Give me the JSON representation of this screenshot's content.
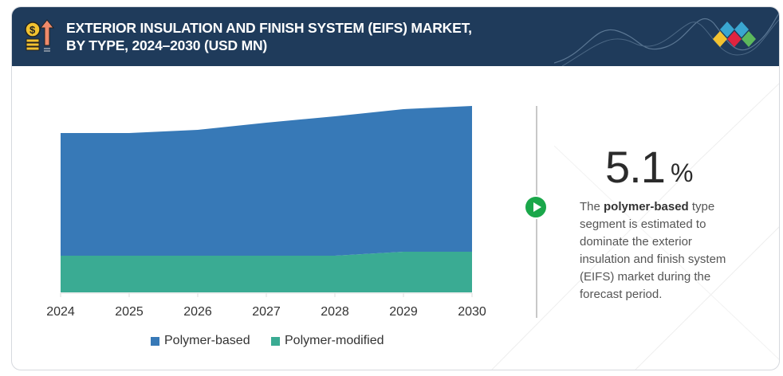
{
  "header": {
    "title_line1": "EXTERIOR INSULATION AND FINISH SYSTEM (EIFS)  MARKET,",
    "title_line2": "BY TYPE, 2024–2030 (USD MN)"
  },
  "highlight": {
    "value": "5.1",
    "unit": "%",
    "text_pre": "The ",
    "text_bold": "polymer-based",
    "text_post": " type segment is estimated to dominate the exterior insulation and finish system (EIFS) market during the forecast period."
  },
  "colors": {
    "header": "#1f3b5b",
    "polymer_based": "#3779b7",
    "polymer_modified": "#3aab93",
    "accent": "#1aa74a"
  },
  "chart_data": {
    "type": "area",
    "stacked": true,
    "title": "EXTERIOR INSULATION AND FINISH SYSTEM (EIFS) MARKET, BY TYPE, 2024–2030 (USD MN)",
    "xlabel": "",
    "ylabel": "",
    "categories": [
      "2024",
      "2025",
      "2026",
      "2027",
      "2028",
      "2029",
      "2030"
    ],
    "series": [
      {
        "name": "Polymer-modified",
        "color": "#3aab93",
        "values": [
          46,
          46,
          46,
          46,
          46,
          51,
          51
        ]
      },
      {
        "name": "Polymer-based",
        "color": "#3779b7",
        "values": [
          154,
          154,
          158,
          167,
          175,
          179,
          183
        ]
      }
    ],
    "ylim": [
      0,
      240
    ],
    "grid": false,
    "legend": [
      "Polymer-based",
      "Polymer-modified"
    ],
    "legend_position": "bottom"
  }
}
